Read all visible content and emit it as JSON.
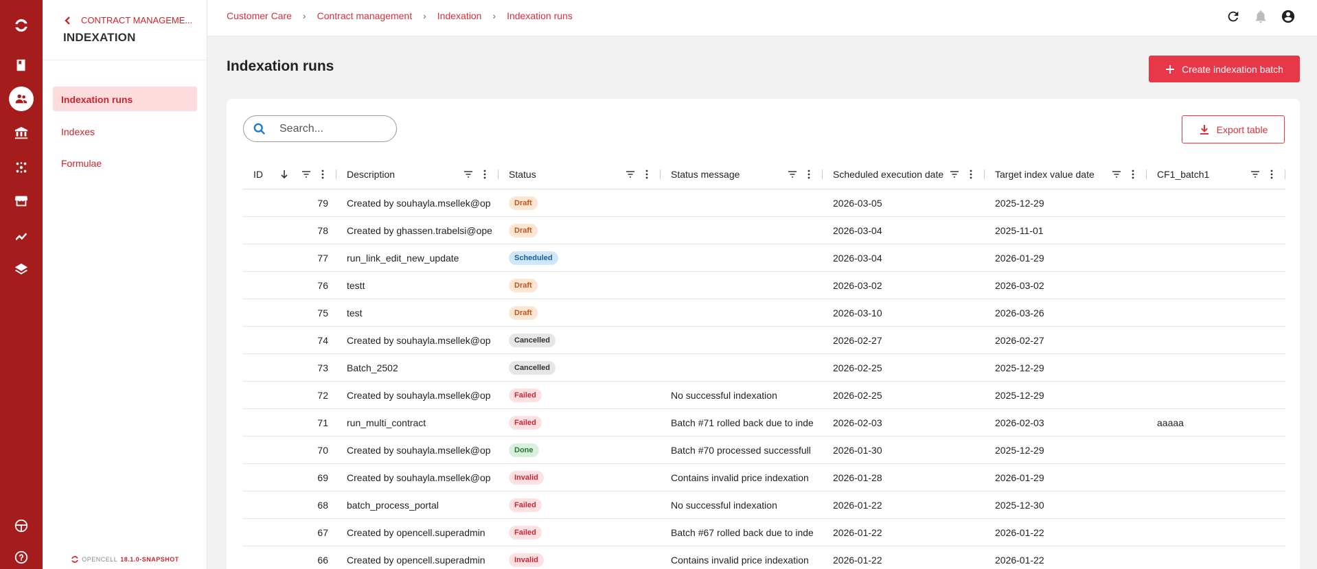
{
  "subnav": {
    "back_label": "CONTRACT MANAGEME...",
    "title": "INDEXATION",
    "items": [
      {
        "label": "Indexation runs"
      },
      {
        "label": "Indexes"
      },
      {
        "label": "Formulae"
      }
    ],
    "brand": "OPENCELL",
    "version": "18.1.0-SNAPSHOT"
  },
  "breadcrumb": [
    "Customer Care",
    "Contract management",
    "Indexation",
    "Indexation runs"
  ],
  "page": {
    "title": "Indexation runs",
    "create_label": "Create indexation batch",
    "export_label": "Export table",
    "search_placeholder": "Search..."
  },
  "table": {
    "columns": [
      "ID",
      "Description",
      "Status",
      "Status message",
      "Scheduled execution date",
      "Target index value date",
      "CF1_batch1"
    ],
    "rows": [
      {
        "id": "79",
        "description": "Created by souhayla.msellek@op",
        "status": "Draft",
        "message": "",
        "scheduled": "2026-03-05",
        "target": "2025-12-29",
        "cf1": ""
      },
      {
        "id": "78",
        "description": "Created by ghassen.trabelsi@ope",
        "status": "Draft",
        "message": "",
        "scheduled": "2026-03-04",
        "target": "2025-11-01",
        "cf1": ""
      },
      {
        "id": "77",
        "description": "run_link_edit_new_update",
        "status": "Scheduled",
        "message": "",
        "scheduled": "2026-03-04",
        "target": "2026-01-29",
        "cf1": ""
      },
      {
        "id": "76",
        "description": "testt",
        "status": "Draft",
        "message": "",
        "scheduled": "2026-03-02",
        "target": "2026-03-02",
        "cf1": ""
      },
      {
        "id": "75",
        "description": "test",
        "status": "Draft",
        "message": "",
        "scheduled": "2026-03-10",
        "target": "2026-03-26",
        "cf1": ""
      },
      {
        "id": "74",
        "description": "Created by souhayla.msellek@op",
        "status": "Cancelled",
        "message": "",
        "scheduled": "2026-02-27",
        "target": "2026-02-27",
        "cf1": ""
      },
      {
        "id": "73",
        "description": "Batch_2502",
        "status": "Cancelled",
        "message": "",
        "scheduled": "2026-02-25",
        "target": "2025-12-29",
        "cf1": ""
      },
      {
        "id": "72",
        "description": "Created by souhayla.msellek@op",
        "status": "Failed",
        "message": "No successful indexation",
        "scheduled": "2026-02-25",
        "target": "2025-12-29",
        "cf1": ""
      },
      {
        "id": "71",
        "description": "run_multi_contract",
        "status": "Failed",
        "message": "Batch #71 rolled back due to inde",
        "scheduled": "2026-02-03",
        "target": "2026-02-03",
        "cf1": "aaaaa"
      },
      {
        "id": "70",
        "description": "Created by souhayla.msellek@op",
        "status": "Done",
        "message": "Batch #70 processed successfull",
        "scheduled": "2026-01-30",
        "target": "2025-12-29",
        "cf1": ""
      },
      {
        "id": "69",
        "description": "Created by souhayla.msellek@op",
        "status": "Invalid",
        "message": "Contains invalid price indexation",
        "scheduled": "2026-01-28",
        "target": "2026-01-29",
        "cf1": ""
      },
      {
        "id": "68",
        "description": "batch_process_portal",
        "status": "Failed",
        "message": "No successful indexation",
        "scheduled": "2026-01-22",
        "target": "2025-12-30",
        "cf1": ""
      },
      {
        "id": "67",
        "description": "Created by opencell.superadmin",
        "status": "Failed",
        "message": "Batch #67 rolled back due to inde",
        "scheduled": "2026-01-22",
        "target": "2026-01-22",
        "cf1": ""
      },
      {
        "id": "66",
        "description": "Created by opencell.superadmin",
        "status": "Invalid",
        "message": "Contains invalid price indexation",
        "scheduled": "2026-01-22",
        "target": "2026-01-22",
        "cf1": ""
      }
    ]
  },
  "colors": {
    "rail": "#a51c1c",
    "accent": "#e9374a",
    "link": "#d8303a"
  }
}
